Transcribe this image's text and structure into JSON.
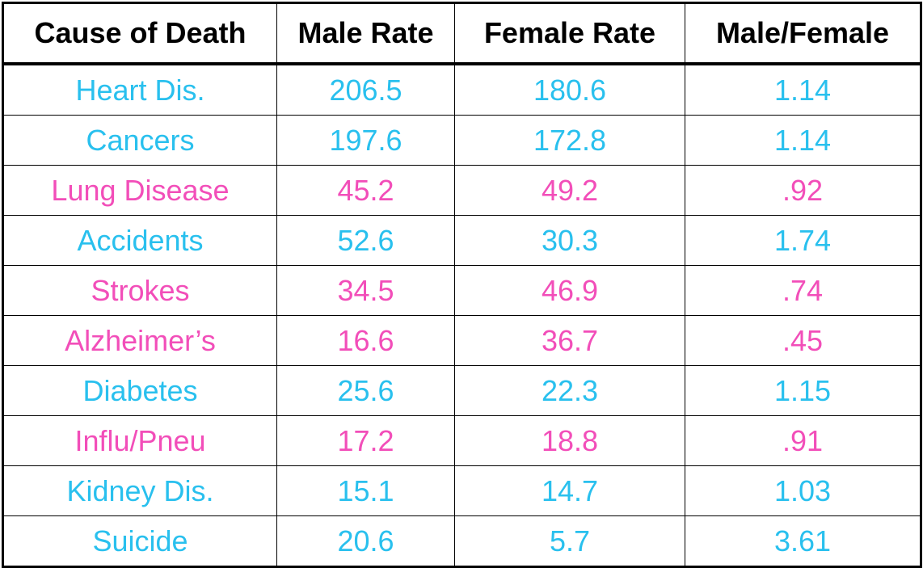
{
  "chart_data": {
    "type": "table",
    "columns": [
      "Cause of Death",
      "Male Rate",
      "Female Rate",
      "Male/Female"
    ],
    "rows": [
      {
        "cause": "Heart Dis.",
        "male_rate": "206.5",
        "female_rate": "180.6",
        "ratio": "1.14",
        "color": "#29C0EE"
      },
      {
        "cause": "Cancers",
        "male_rate": "197.6",
        "female_rate": "172.8",
        "ratio": "1.14",
        "color": "#29C0EE"
      },
      {
        "cause": "Lung Disease",
        "male_rate": "45.2",
        "female_rate": "49.2",
        "ratio": ".92",
        "color": "#F24EB9"
      },
      {
        "cause": "Accidents",
        "male_rate": "52.6",
        "female_rate": "30.3",
        "ratio": "1.74",
        "color": "#29C0EE"
      },
      {
        "cause": "Strokes",
        "male_rate": "34.5",
        "female_rate": "46.9",
        "ratio": ".74",
        "color": "#F24EB9"
      },
      {
        "cause": "Alzheimer’s",
        "male_rate": "16.6",
        "female_rate": "36.7",
        "ratio": ".45",
        "color": "#F24EB9"
      },
      {
        "cause": "Diabetes",
        "male_rate": "25.6",
        "female_rate": "22.3",
        "ratio": "1.15",
        "color": "#29C0EE"
      },
      {
        "cause": "Influ/Pneu",
        "male_rate": "17.2",
        "female_rate": "18.8",
        "ratio": ".91",
        "color": "#F24EB9"
      },
      {
        "cause": "Kidney Dis.",
        "male_rate": "15.1",
        "female_rate": "14.7",
        "ratio": "1.03",
        "color": "#29C0EE"
      },
      {
        "cause": "Suicide",
        "male_rate": "20.6",
        "female_rate": "5.7",
        "ratio": "3.61",
        "color": "#29C0EE"
      }
    ]
  },
  "colors": {
    "male_higher": "#29C0EE",
    "female_higher": "#F24EB9",
    "header_text": "#000000",
    "border": "#000000"
  }
}
